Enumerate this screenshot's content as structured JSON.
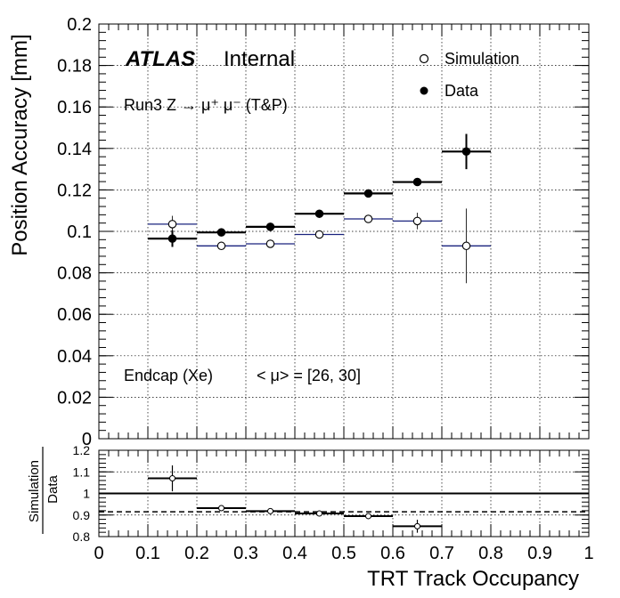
{
  "chart_data": [
    {
      "type": "scatter",
      "panel": "main",
      "ylabel": "Position Accuracy [mm]",
      "xlim": [
        0,
        1
      ],
      "ylim": [
        0,
        0.2
      ],
      "grid": true,
      "x_ticks": [
        "0",
        "0.1",
        "0.2",
        "0.3",
        "0.4",
        "0.5",
        "0.6",
        "0.7",
        "0.8",
        "0.9",
        "1"
      ],
      "y_ticks": [
        "0",
        "0.02",
        "0.04",
        "0.06",
        "0.08",
        "0.1",
        "0.12",
        "0.14",
        "0.16",
        "0.18",
        "0.2"
      ],
      "series": [
        {
          "name": "Simulation",
          "marker": "open-circle",
          "color": "#1a237e",
          "x": [
            0.15,
            0.25,
            0.35,
            0.45,
            0.55,
            0.65,
            0.75
          ],
          "x_err": [
            0.05,
            0.05,
            0.05,
            0.05,
            0.05,
            0.05,
            0.05
          ],
          "y": [
            0.1035,
            0.093,
            0.094,
            0.0985,
            0.106,
            0.105,
            0.093
          ],
          "y_err": [
            0.004,
            0.0015,
            0.0015,
            0.0015,
            0.0015,
            0.004,
            0.018
          ]
        },
        {
          "name": "Data",
          "marker": "filled-circle",
          "color": "#000000",
          "x": [
            0.15,
            0.25,
            0.35,
            0.45,
            0.55,
            0.65,
            0.75
          ],
          "x_err": [
            0.05,
            0.05,
            0.05,
            0.05,
            0.05,
            0.05,
            0.05
          ],
          "y": [
            0.0965,
            0.0995,
            0.1022,
            0.1085,
            0.1183,
            0.1238,
            0.1385
          ],
          "y_err": [
            0.004,
            0.0015,
            0.0015,
            0.0015,
            0.0015,
            0.0015,
            0.0085
          ]
        }
      ],
      "annotations": {
        "atlas": "ATLAS",
        "internal": "Internal",
        "run_label": "Run3 Z → μ⁺ μ⁻ (T&P)",
        "region": "Endcap (Xe)",
        "pileup": "< μ> = [26, 30]"
      },
      "legend": [
        "Simulation",
        "Data"
      ],
      "legend_position": "top-right"
    },
    {
      "type": "scatter",
      "panel": "ratio",
      "title": "",
      "xlabel": "TRT Track Occupancy",
      "ylabel_top": "Simulation",
      "ylabel_bottom": "Data",
      "xlim": [
        0,
        1
      ],
      "ylim": [
        0.8,
        1.2
      ],
      "grid": true,
      "x_ticks": [
        "0",
        "0.1",
        "0.2",
        "0.3",
        "0.4",
        "0.5",
        "0.6",
        "0.7",
        "0.8",
        "0.9",
        "1"
      ],
      "y_ticks": [
        "0.8",
        "0.9",
        "1",
        "1.1",
        "1.2"
      ],
      "reference_line": 1.0,
      "mean_line": 0.915,
      "series": [
        {
          "name": "Simulation/Data",
          "x": [
            0.15,
            0.25,
            0.35,
            0.45,
            0.55,
            0.65
          ],
          "x_err": [
            0.05,
            0.05,
            0.05,
            0.05,
            0.05,
            0.05
          ],
          "y": [
            1.07,
            0.932,
            0.918,
            0.907,
            0.895,
            0.848
          ],
          "y_err": [
            0.06,
            0.012,
            0.008,
            0.007,
            0.007,
            0.03
          ]
        }
      ]
    }
  ]
}
